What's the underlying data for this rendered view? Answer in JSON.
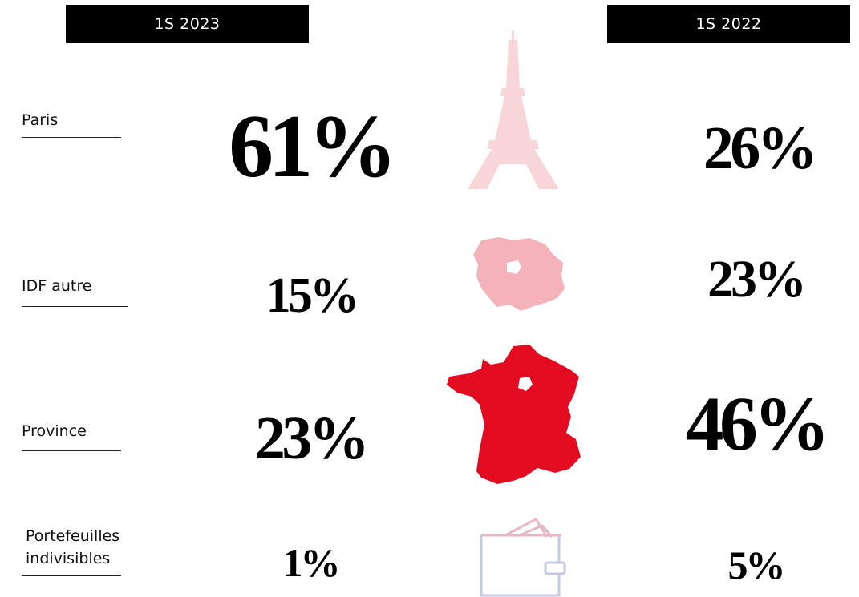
{
  "headers": [
    "1S 2023",
    "1S 2022"
  ],
  "rows": [
    {
      "label": "Paris",
      "value_2023": "61%",
      "value_2022": "26%"
    },
    {
      "label": "IDF autre",
      "value_2023": "15%",
      "value_2022": "23%"
    },
    {
      "label": "Province",
      "value_2023": "23%",
      "value_2022": "46%"
    },
    {
      "label": "Portefeuilles indivisibles",
      "value_2023": "1%",
      "value_2022": "5%"
    }
  ]
}
